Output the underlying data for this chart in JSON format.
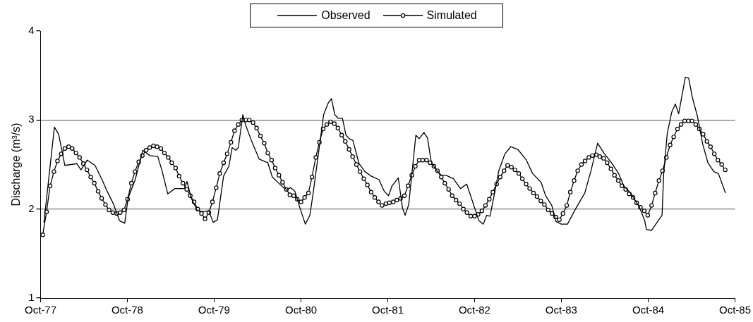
{
  "chart_data": {
    "type": "line",
    "ylabel": "Discharge (m³/s)",
    "xlim": [
      "1977-10",
      "1985-10"
    ],
    "xticks": [
      {
        "value": "1977-10",
        "label": "Oct-77"
      },
      {
        "value": "1978-10",
        "label": "Oct-78"
      },
      {
        "value": "1979-10",
        "label": "Oct-79"
      },
      {
        "value": "1980-10",
        "label": "Oct-80"
      },
      {
        "value": "1981-10",
        "label": "Oct-81"
      },
      {
        "value": "1982-10",
        "label": "Oct-82"
      },
      {
        "value": "1983-10",
        "label": "Oct-83"
      },
      {
        "value": "1984-10",
        "label": "Oct-84"
      },
      {
        "value": "1985-10",
        "label": "Oct-85"
      }
    ],
    "ylim": [
      1,
      4
    ],
    "yticks": [
      1,
      2,
      3,
      4
    ],
    "grid": "y",
    "legend": "top",
    "line_style": "solid",
    "series": [
      {
        "name": "Observed",
        "color": "#000000",
        "marker": "none",
        "x": [
          "1977-10-15",
          "1977-11-28",
          "1977-12-16",
          "1978-01-11",
          "1978-02-06",
          "1978-03-02",
          "1978-03-20",
          "1978-04-15",
          "1978-05-18",
          "1978-06-13",
          "1978-07-08",
          "1978-08-03",
          "1978-08-29",
          "1978-09-20",
          "1978-10-04",
          "1978-11-03",
          "1978-12-05",
          "1979-01-04",
          "1979-02-06",
          "1979-02-24",
          "1979-03-20",
          "1979-04-19",
          "1979-05-29",
          "1979-06-09",
          "1979-06-27",
          "1979-07-23",
          "1979-08-18",
          "1979-09-09",
          "1979-09-27",
          "1979-10-15",
          "1979-11-10",
          "1979-12-02",
          "1979-12-16",
          "1980-01-01",
          "1980-01-11",
          "1980-01-30",
          "1980-02-10",
          "1980-03-06",
          "1980-04-08",
          "1980-05-14",
          "1980-06-02",
          "1980-07-19",
          "1980-08-03",
          "1980-08-18",
          "1980-09-05",
          "1980-09-23",
          "1980-10-19",
          "1980-11-07",
          "1980-11-21",
          "1980-12-20",
          "1981-01-04",
          "1981-01-23",
          "1981-02-06",
          "1981-02-20",
          "1981-03-06",
          "1981-03-24",
          "1981-04-08",
          "1981-04-22",
          "1981-05-07",
          "1981-06-02",
          "1981-06-27",
          "1981-07-23",
          "1981-08-25",
          "1981-09-16",
          "1981-10-04",
          "1981-10-19",
          "1981-11-14",
          "1981-12-02",
          "1981-12-13",
          "1981-12-28",
          "1982-01-27",
          "1982-02-10",
          "1982-03-02",
          "1982-03-17",
          "1982-04-01",
          "1982-04-19",
          "1982-05-14",
          "1982-06-02",
          "1982-07-04",
          "1982-08-03",
          "1982-08-29",
          "1982-09-23",
          "1982-10-19",
          "1982-11-07",
          "1982-11-21",
          "1982-12-05",
          "1982-12-28",
          "1983-01-11",
          "1983-02-06",
          "1983-03-02",
          "1983-04-01",
          "1983-05-07",
          "1983-06-02",
          "1983-07-08",
          "1983-07-27",
          "1983-08-22",
          "1983-09-09",
          "1983-10-01",
          "1983-10-27",
          "1983-12-02",
          "1984-01-08",
          "1984-02-03",
          "1984-03-02",
          "1984-03-28",
          "1984-04-29",
          "1984-05-29",
          "1984-06-20",
          "1984-07-19",
          "1984-08-25",
          "1984-09-16",
          "1984-09-23",
          "1984-10-15",
          "1984-11-07",
          "1984-11-28",
          "1984-12-05",
          "1984-12-20",
          "1985-01-08",
          "1985-01-23",
          "1985-02-06",
          "1985-03-06",
          "1985-03-20",
          "1985-04-04",
          "1985-04-26",
          "1985-05-18",
          "1985-06-09",
          "1985-07-04",
          "1985-07-23",
          "1985-08-22"
        ],
        "values": [
          1.85,
          2.92,
          2.84,
          2.49,
          2.5,
          2.51,
          2.44,
          2.55,
          2.49,
          2.35,
          2.2,
          2.06,
          1.87,
          1.84,
          2.12,
          2.33,
          2.66,
          2.6,
          2.59,
          2.43,
          2.17,
          2.23,
          2.23,
          2.31,
          2.12,
          1.98,
          1.97,
          1.98,
          1.85,
          1.88,
          2.37,
          2.48,
          2.69,
          2.66,
          2.69,
          3.06,
          2.95,
          2.77,
          2.56,
          2.52,
          2.36,
          2.24,
          2.22,
          2.24,
          2.2,
          2.04,
          1.83,
          1.93,
          2.18,
          2.76,
          3.06,
          3.19,
          3.24,
          3.06,
          3.02,
          3.02,
          2.83,
          2.79,
          2.77,
          2.51,
          2.42,
          2.37,
          2.33,
          2.2,
          2.15,
          2.26,
          2.35,
          2.01,
          1.93,
          2.05,
          2.83,
          2.79,
          2.86,
          2.8,
          2.54,
          2.45,
          2.38,
          2.38,
          2.34,
          2.23,
          2.28,
          2.08,
          1.87,
          1.83,
          1.93,
          1.92,
          2.23,
          2.43,
          2.62,
          2.7,
          2.67,
          2.55,
          2.4,
          2.3,
          2.15,
          2.04,
          1.86,
          1.83,
          1.83,
          2.01,
          2.18,
          2.43,
          2.74,
          2.63,
          2.52,
          2.4,
          2.26,
          2.18,
          2.02,
          1.87,
          1.77,
          1.76,
          1.85,
          1.93,
          2.4,
          2.85,
          3.09,
          3.18,
          3.07,
          3.48,
          3.47,
          3.26,
          3.04,
          2.73,
          2.52,
          2.42,
          2.4,
          2.18
        ]
      },
      {
        "name": "Simulated",
        "color": "#000000",
        "marker": "circle",
        "x": [
          "1977-10-10",
          "1977-10-26",
          "1977-11-10",
          "1977-11-26",
          "1977-12-11",
          "1977-12-27",
          "1978-01-11",
          "1978-01-27",
          "1978-02-11",
          "1978-02-27",
          "1978-03-14",
          "1978-03-30",
          "1978-04-14",
          "1978-04-30",
          "1978-05-15",
          "1978-05-31",
          "1978-06-15",
          "1978-07-01",
          "1978-07-16",
          "1978-08-01",
          "1978-08-17",
          "1978-09-01",
          "1978-09-17",
          "1978-10-02",
          "1978-10-18",
          "1978-11-02",
          "1978-11-18",
          "1978-12-03",
          "1978-12-19",
          "1979-01-03",
          "1979-01-19",
          "1979-02-03",
          "1979-02-19",
          "1979-03-06",
          "1979-03-22",
          "1979-04-06",
          "1979-04-22",
          "1979-05-07",
          "1979-05-23",
          "1979-06-08",
          "1979-06-23",
          "1979-07-09",
          "1979-07-24",
          "1979-08-09",
          "1979-08-24",
          "1979-09-09",
          "1979-09-24",
          "1979-10-10",
          "1979-10-25",
          "1979-11-10",
          "1979-11-25",
          "1979-12-11",
          "1979-12-26",
          "1980-01-11",
          "1980-01-26",
          "1980-02-11",
          "1980-02-26",
          "1980-03-13",
          "1980-03-28",
          "1980-04-13",
          "1980-04-29",
          "1980-05-14",
          "1980-05-30",
          "1980-06-14",
          "1980-06-30",
          "1980-07-15",
          "1980-07-31",
          "1980-08-15",
          "1980-08-31",
          "1980-09-15",
          "1980-10-01",
          "1980-10-16",
          "1980-11-01",
          "1980-11-16",
          "1980-12-02",
          "1980-12-17",
          "1981-01-02",
          "1981-01-17",
          "1981-02-02",
          "1981-02-18",
          "1981-03-05",
          "1981-03-21",
          "1981-04-05",
          "1981-04-21",
          "1981-05-06",
          "1981-05-22",
          "1981-06-06",
          "1981-06-22",
          "1981-07-07",
          "1981-07-23",
          "1981-08-07",
          "1981-08-23",
          "1981-09-07",
          "1981-09-23",
          "1981-10-08",
          "1981-10-24",
          "1981-11-08",
          "1981-11-24",
          "1981-12-10",
          "1981-12-25",
          "1982-01-10",
          "1982-01-25",
          "1982-02-10",
          "1982-02-25",
          "1982-03-13",
          "1982-03-28",
          "1982-04-13",
          "1982-04-28",
          "1982-05-14",
          "1982-05-29",
          "1982-06-14",
          "1982-06-29",
          "1982-07-15",
          "1982-07-30",
          "1982-08-15",
          "1982-08-30",
          "1982-09-15",
          "1982-10-01",
          "1982-10-16",
          "1982-11-01",
          "1982-11-16",
          "1982-12-02",
          "1982-12-17",
          "1983-01-02",
          "1983-01-17",
          "1983-02-02",
          "1983-02-17",
          "1983-03-05",
          "1983-03-20",
          "1983-04-05",
          "1983-04-20",
          "1983-05-06",
          "1983-05-21",
          "1983-06-06",
          "1983-06-21",
          "1983-07-07",
          "1983-07-22",
          "1983-08-07",
          "1983-08-23",
          "1983-09-07",
          "1983-09-23",
          "1983-10-08",
          "1983-10-24",
          "1983-11-08",
          "1983-11-24",
          "1983-12-09",
          "1983-12-25",
          "1984-01-09",
          "1984-01-25",
          "1984-02-09",
          "1984-02-25",
          "1984-03-11",
          "1984-03-27",
          "1984-04-11",
          "1984-04-27",
          "1984-05-12",
          "1984-05-28",
          "1984-06-12",
          "1984-06-28",
          "1984-07-13",
          "1984-07-29",
          "1984-08-13",
          "1984-08-29",
          "1984-09-14",
          "1984-09-29",
          "1984-10-15",
          "1984-10-30",
          "1984-11-15",
          "1984-11-30",
          "1984-12-16",
          "1985-01-01",
          "1985-01-16",
          "1985-02-01",
          "1985-02-16",
          "1985-03-03",
          "1985-03-19",
          "1985-04-03",
          "1985-04-19",
          "1985-05-04",
          "1985-05-20",
          "1985-06-05",
          "1985-06-20",
          "1985-07-06",
          "1985-07-21",
          "1985-08-06",
          "1985-08-21"
        ],
        "values": [
          1.71,
          1.97,
          2.26,
          2.42,
          2.54,
          2.62,
          2.68,
          2.7,
          2.68,
          2.63,
          2.58,
          2.51,
          2.44,
          2.36,
          2.29,
          2.2,
          2.12,
          2.05,
          1.99,
          1.96,
          1.95,
          1.96,
          1.99,
          2.11,
          2.29,
          2.42,
          2.53,
          2.6,
          2.66,
          2.69,
          2.71,
          2.7,
          2.68,
          2.63,
          2.58,
          2.52,
          2.46,
          2.37,
          2.29,
          2.22,
          2.15,
          2.08,
          2.0,
          1.95,
          1.89,
          1.96,
          2.08,
          2.24,
          2.4,
          2.52,
          2.62,
          2.75,
          2.88,
          2.95,
          3.0,
          3.0,
          3.0,
          2.97,
          2.91,
          2.82,
          2.74,
          2.63,
          2.55,
          2.46,
          2.38,
          2.3,
          2.22,
          2.16,
          2.15,
          2.11,
          2.08,
          2.13,
          2.18,
          2.36,
          2.58,
          2.75,
          2.9,
          2.95,
          2.98,
          2.96,
          2.91,
          2.83,
          2.76,
          2.67,
          2.59,
          2.5,
          2.42,
          2.34,
          2.27,
          2.19,
          2.13,
          2.08,
          2.04,
          2.06,
          2.07,
          2.08,
          2.1,
          2.12,
          2.15,
          2.26,
          2.38,
          2.48,
          2.55,
          2.55,
          2.55,
          2.52,
          2.48,
          2.43,
          2.36,
          2.29,
          2.22,
          2.15,
          2.1,
          2.06,
          2.0,
          1.96,
          1.92,
          1.92,
          1.94,
          1.98,
          2.04,
          2.11,
          2.19,
          2.28,
          2.36,
          2.43,
          2.49,
          2.47,
          2.44,
          2.4,
          2.34,
          2.28,
          2.23,
          2.18,
          2.14,
          2.09,
          2.05,
          1.99,
          1.95,
          1.91,
          1.88,
          1.95,
          2.04,
          2.19,
          2.32,
          2.43,
          2.5,
          2.54,
          2.58,
          2.6,
          2.61,
          2.59,
          2.57,
          2.52,
          2.45,
          2.38,
          2.32,
          2.26,
          2.22,
          2.17,
          2.13,
          2.07,
          2.02,
          1.98,
          1.93,
          2.04,
          2.18,
          2.32,
          2.43,
          2.58,
          2.72,
          2.81,
          2.9,
          2.95,
          2.99,
          2.99,
          2.99,
          2.95,
          2.9,
          2.84,
          2.76,
          2.7,
          2.62,
          2.55,
          2.5,
          2.44
        ]
      }
    ]
  }
}
